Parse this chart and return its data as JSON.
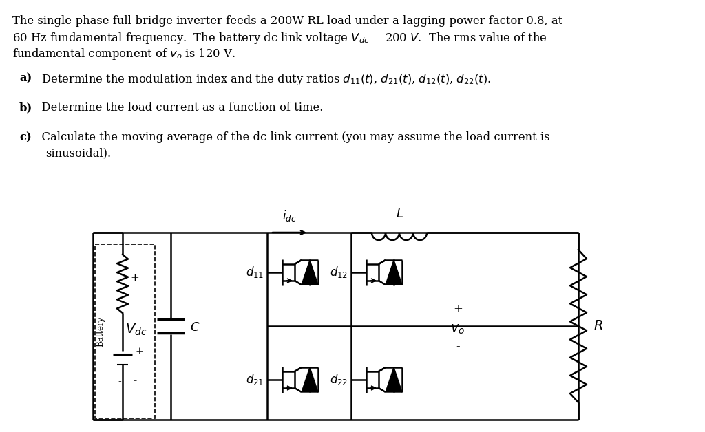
{
  "bg_color": "#ffffff",
  "text_color": "#000000",
  "title_lines": [
    "The single-phase full-bridge inverter feeds a 200W RL load under a lagging power factor 0.8, at",
    "60 Hz fundamental frequency.  The battery dc link voltage $V_{dc}$ = 200 $V$.  The rms value of the",
    "fundamental component of $v_o$ is 120 V."
  ],
  "q_a_bold": "a)",
  "q_a_rest": "  Determine the modulation index and the duty ratios $d_{11}(t)$, $d_{21}(t)$, $d_{12}(t)$, $d_{22}(t)$.",
  "q_b_bold": "b)",
  "q_b_rest": "  Determine the load current as a function of time.",
  "q_c_bold": "c)",
  "q_c_rest": "  Calculate the moving average of the dc link current (you may assume the load current is",
  "q_c_cont": "    sinusoidal).",
  "idc_label": "$i_{dc}$",
  "L_label": "$L$",
  "R_label": "$R$",
  "C_label": "$C$",
  "Vdc_label": "$V_{dc}$",
  "vo_label": "$v_o$",
  "d11_label": "$d_{11}$",
  "d21_label": "$d_{21}$",
  "d12_label": "$d_{12}$",
  "d22_label": "$d_{22}$",
  "Battery_label": "Battery",
  "plus_sign": "+",
  "minus_sign": "-"
}
